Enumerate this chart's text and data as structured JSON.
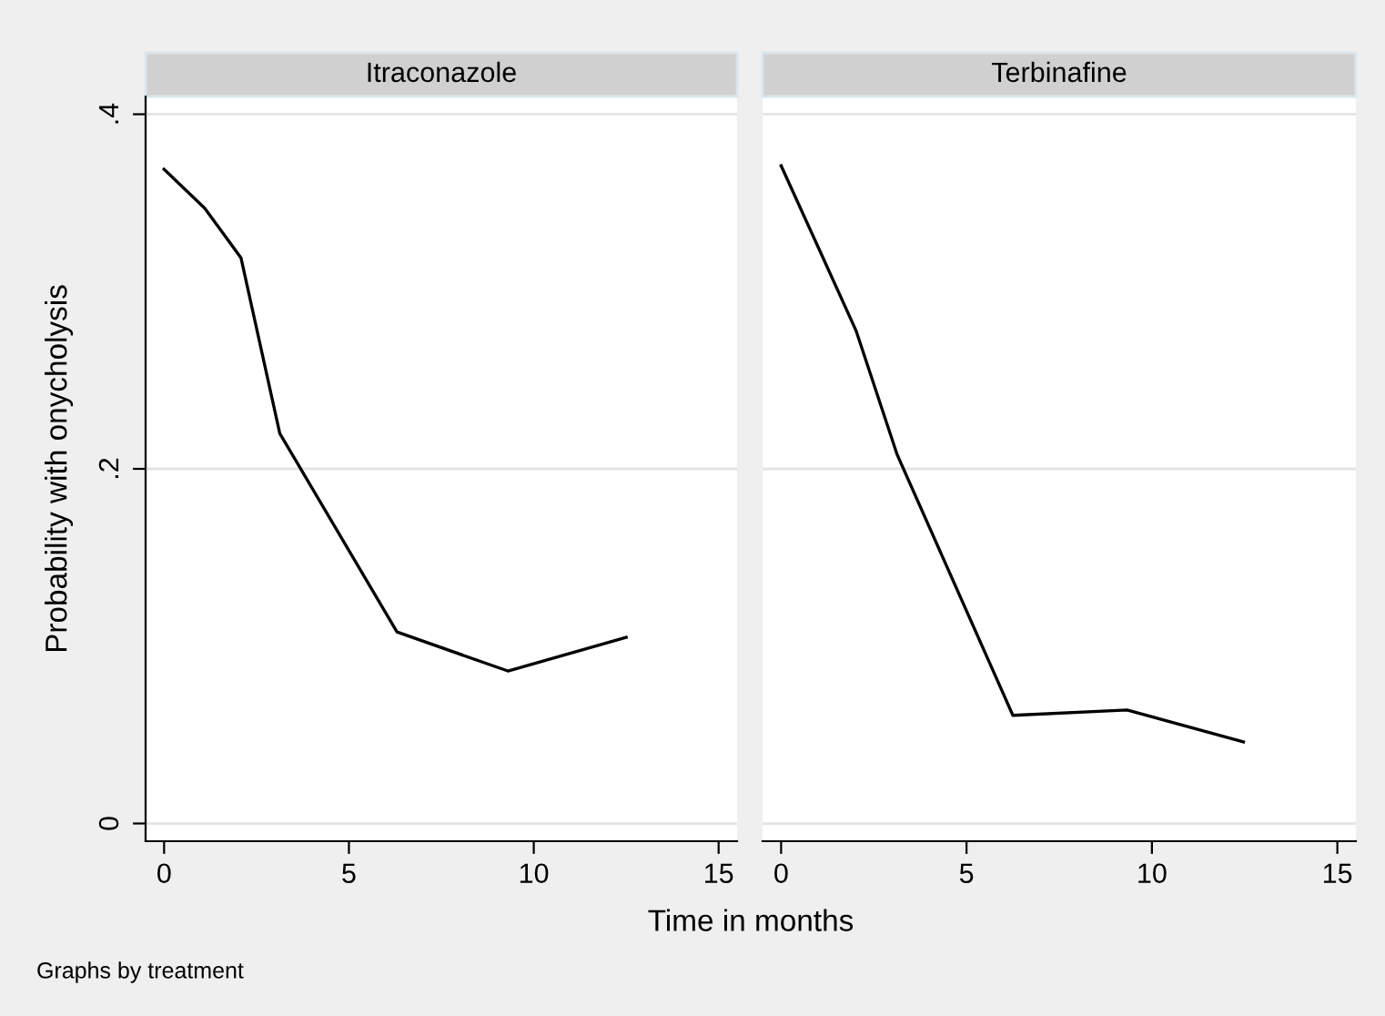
{
  "chart_data": [
    {
      "type": "line",
      "title": "Itraconazole",
      "ylabel": "Probability with onycholysis",
      "xlabel": "Time in months",
      "annotations": [
        "Graphs by treatment"
      ],
      "x": [
        0,
        1.1,
        2.08,
        3.13,
        6.3,
        9.3,
        12.5
      ],
      "series": [
        {
          "color": "#000000",
          "values": [
            0.369,
            0.347,
            0.319,
            0.22,
            0.108,
            0.086,
            0.105
          ]
        }
      ],
      "xlim": [
        -0.5,
        15.5
      ],
      "ylim": [
        -0.01,
        0.41
      ],
      "xticks": [
        0,
        5,
        10,
        15
      ],
      "yticks": [
        0,
        {
          "value": 0.2,
          "label": ".2"
        },
        {
          "value": 0.4,
          "label": ".4"
        }
      ],
      "grid": "y",
      "marker": "none",
      "line_style": "solid"
    },
    {
      "type": "line",
      "title": "Terbinafine",
      "x": [
        0,
        1.0,
        2.02,
        3.13,
        6.25,
        9.33,
        12.47
      ],
      "series": [
        {
          "color": "#000000",
          "values": [
            0.371,
            0.325,
            0.278,
            0.208,
            0.061,
            0.064,
            0.046
          ]
        }
      ],
      "xlim": [
        -0.5,
        15.5
      ],
      "ylim": [
        -0.01,
        0.41
      ],
      "xticks": [
        0,
        5,
        10,
        15
      ],
      "yticks": [
        {
          "value": 0,
          "label": null
        },
        {
          "value": 0.2,
          "label": null
        },
        {
          "value": 0.4,
          "label": null
        }
      ],
      "grid": "y",
      "marker": "none",
      "line_style": "solid",
      "tick_labels": "x"
    }
  ]
}
